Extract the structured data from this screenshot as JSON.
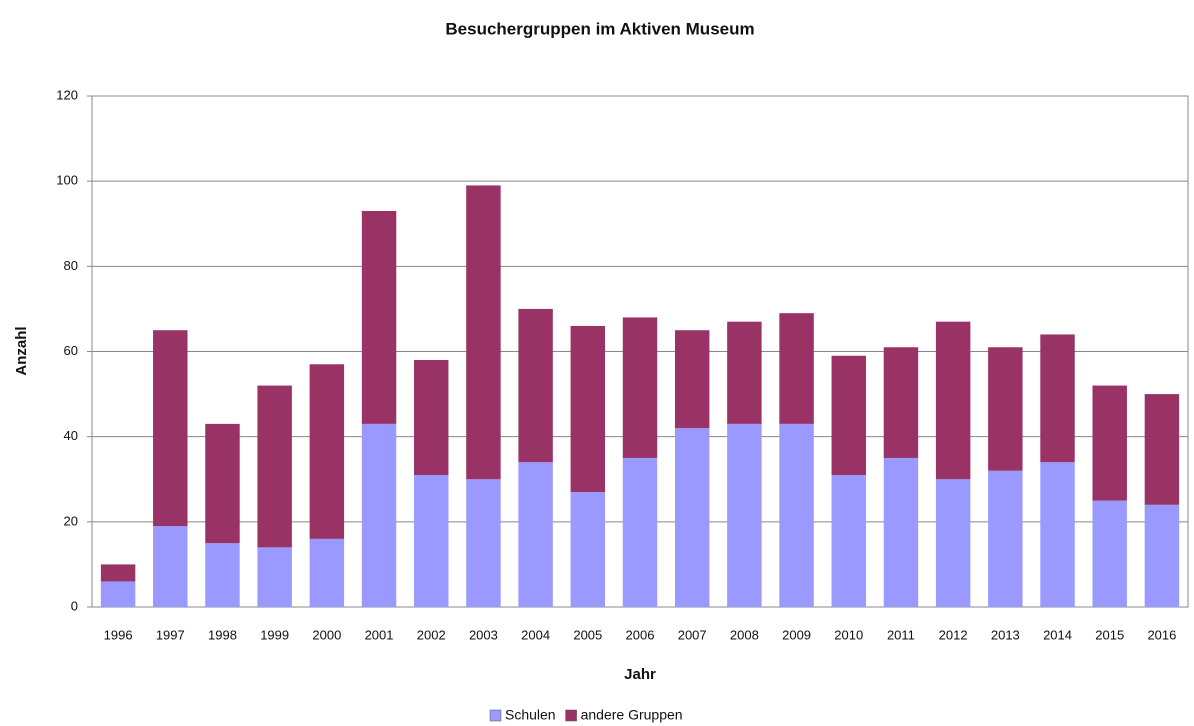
{
  "chart_data": {
    "type": "stacked_bar",
    "title": "Besuchergruppen im Aktiven Museum",
    "x_label": "Jahr",
    "y_label": "Anzahl",
    "categories": [
      "1996",
      "1997",
      "1998",
      "1999",
      "2000",
      "2001",
      "2002",
      "2003",
      "2004",
      "2005",
      "2006",
      "2007",
      "2008",
      "2009",
      "2010",
      "2011",
      "2012",
      "2013",
      "2014",
      "2015",
      "2016"
    ],
    "series": [
      {
        "name": "Schulen",
        "color": "#9999ff",
        "values": [
          6,
          19,
          15,
          14,
          16,
          43,
          31,
          30,
          34,
          27,
          35,
          42,
          43,
          43,
          31,
          35,
          30,
          32,
          34,
          25,
          24
        ]
      },
      {
        "name": "andere Gruppen",
        "color": "#993366",
        "values": [
          4,
          46,
          28,
          38,
          41,
          50,
          27,
          69,
          36,
          39,
          33,
          23,
          24,
          26,
          28,
          26,
          37,
          29,
          30,
          27,
          26
        ]
      }
    ],
    "ylim": [
      0,
      120
    ],
    "yticks": [
      0,
      20,
      40,
      60,
      80,
      100,
      120
    ],
    "grid": true,
    "legend": "bottom"
  }
}
